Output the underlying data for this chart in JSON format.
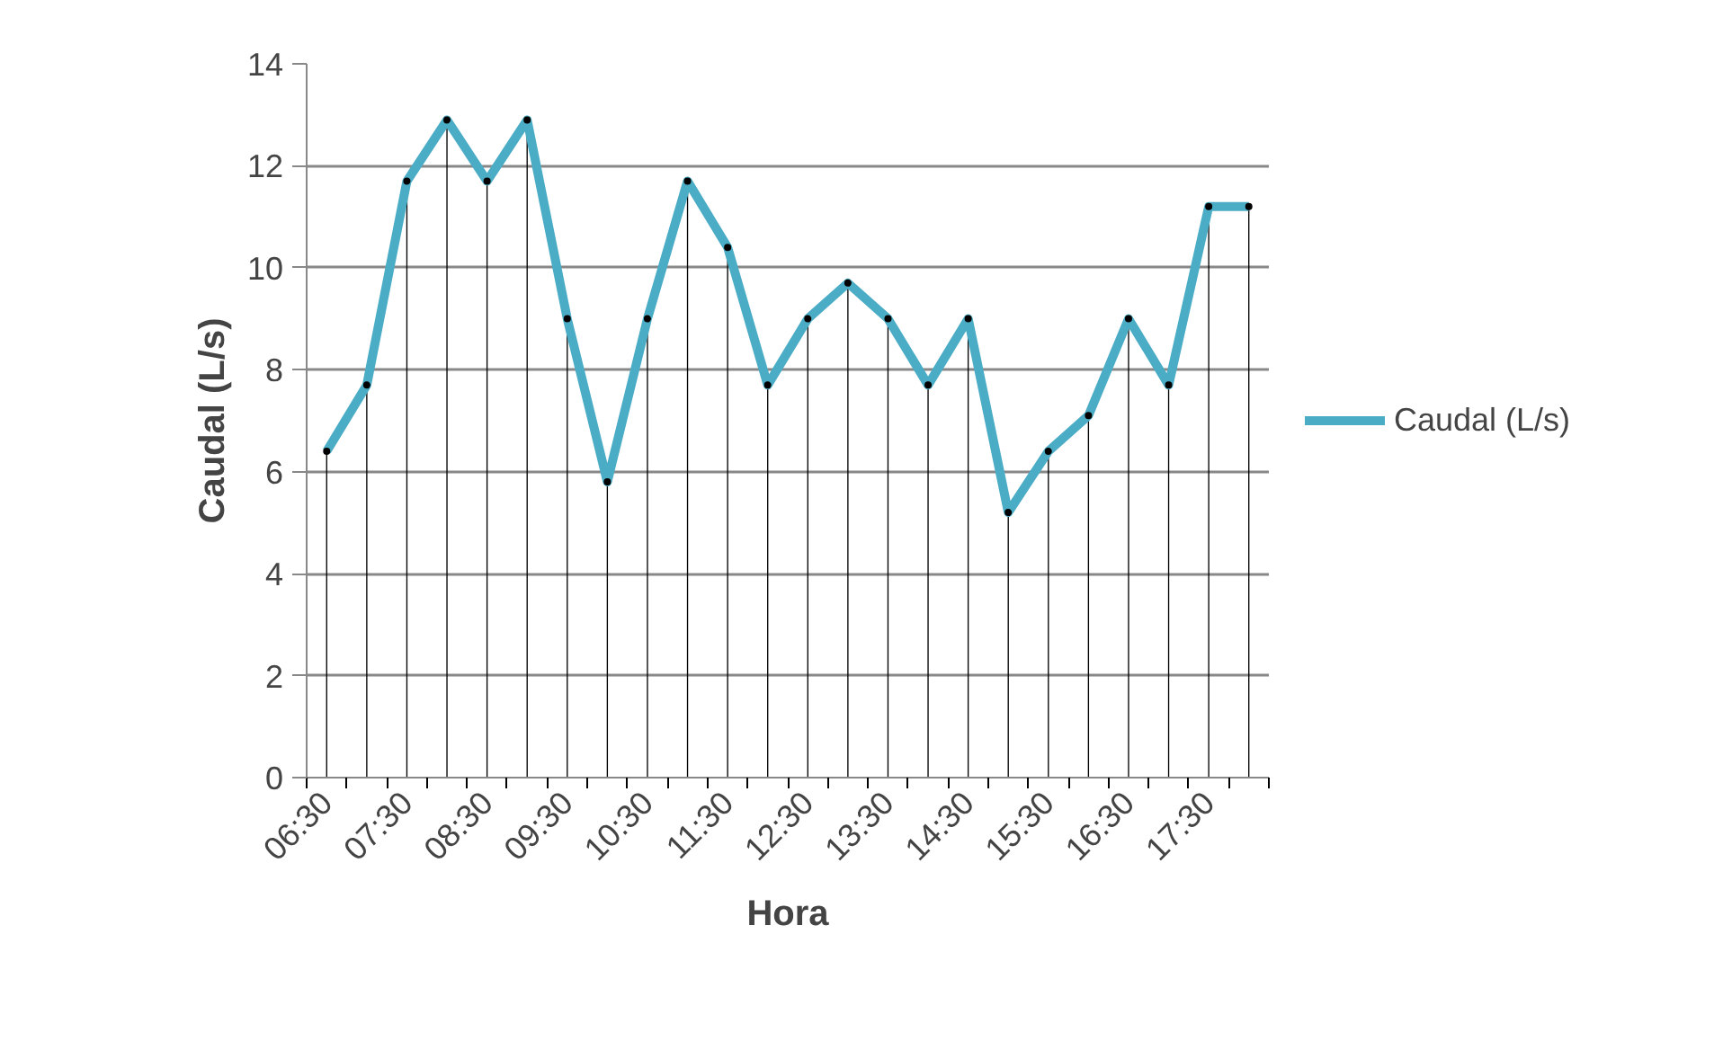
{
  "chart_data": {
    "type": "line",
    "xlabel": "Hora",
    "ylabel": "Caudal (L/s)",
    "categories": [
      "06:30",
      null,
      "07:30",
      null,
      "08:30",
      null,
      "09:30",
      null,
      "10:30",
      null,
      "11:30",
      null,
      "12:30",
      null,
      "13:30",
      null,
      "14:30",
      null,
      "15:30",
      null,
      "16:30",
      null,
      "17:30",
      null
    ],
    "series": [
      {
        "name": "Caudal (L/s)",
        "color": "#4bacc6",
        "values": [
          6.4,
          7.7,
          11.7,
          12.9,
          11.7,
          12.9,
          9.0,
          5.8,
          9.0,
          11.7,
          10.4,
          7.7,
          9.0,
          9.7,
          9.0,
          7.7,
          9.0,
          5.2,
          6.4,
          7.1,
          9.0,
          7.7,
          11.2,
          11.2
        ]
      },
      {
        "type": "lollipop",
        "color": "#000000",
        "marker": "circle",
        "values": [
          6.4,
          7.7,
          11.7,
          12.9,
          11.7,
          12.9,
          9.0,
          5.8,
          9.0,
          11.7,
          10.4,
          7.7,
          9.0,
          9.7,
          9.0,
          7.7,
          9.0,
          5.2,
          6.4,
          7.1,
          9.0,
          7.7,
          11.2,
          11.2
        ]
      }
    ],
    "ylim": [
      0,
      14
    ],
    "yticks": [
      0,
      2,
      4,
      6,
      8,
      10,
      12,
      14
    ],
    "grid": "y",
    "legend": "right"
  }
}
